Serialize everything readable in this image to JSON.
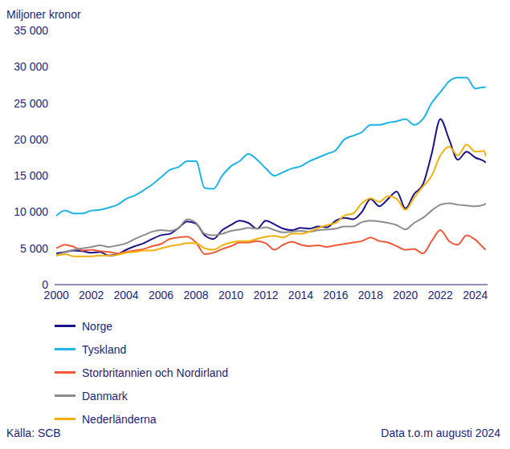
{
  "chart_data": {
    "type": "line",
    "y_label": "Miljoner kronor",
    "annotations": [
      "Källa: SCB",
      "Data t.o.m augusti 2024"
    ],
    "x": [
      2000,
      2000.5,
      2001,
      2001.5,
      2002,
      2002.5,
      2003,
      2003.5,
      2004,
      2004.5,
      2005,
      2005.5,
      2006,
      2006.5,
      2007,
      2007.5,
      2008,
      2008.5,
      2009,
      2009.5,
      2010,
      2010.5,
      2011,
      2011.5,
      2012,
      2012.5,
      2013,
      2013.5,
      2014,
      2014.5,
      2015,
      2015.5,
      2016,
      2016.5,
      2017,
      2017.5,
      2018,
      2018.5,
      2019,
      2019.5,
      2020,
      2020.5,
      2021,
      2021.5,
      2022,
      2022.5,
      2023,
      2023.5,
      2024,
      2024.5,
      2024.6
    ],
    "series": [
      {
        "name": "Norge",
        "color": "#1c1289",
        "values": [
          4300,
          4500,
          4700,
          4600,
          4400,
          4500,
          4000,
          4200,
          4800,
          5300,
          5700,
          6300,
          6800,
          7000,
          7800,
          8700,
          8400,
          6800,
          6300,
          7500,
          8200,
          8800,
          8500,
          7700,
          8800,
          8300,
          7700,
          7500,
          7800,
          7700,
          8000,
          7900,
          8800,
          9200,
          9000,
          10000,
          11800,
          10800,
          11800,
          12800,
          10500,
          12500,
          13800,
          18000,
          22800,
          20000,
          17200,
          18300,
          17500,
          17000,
          16800
        ]
      },
      {
        "name": "Tyskland",
        "color": "#1fb4e6",
        "values": [
          9500,
          10200,
          9800,
          9800,
          10200,
          10300,
          10600,
          11000,
          11800,
          12300,
          13000,
          13800,
          14800,
          15800,
          16200,
          17000,
          17000,
          13300,
          13200,
          15000,
          16300,
          17000,
          18000,
          17200,
          16000,
          15000,
          15500,
          16000,
          16300,
          17000,
          17500,
          18000,
          18500,
          20000,
          20500,
          21000,
          22000,
          22000,
          22300,
          22500,
          22800,
          22000,
          22800,
          25000,
          26500,
          28000,
          28500,
          28500,
          27000,
          27200,
          27200
        ]
      },
      {
        "name": "Storbritannien och Nordirland",
        "color": "#f0583a",
        "values": [
          5000,
          5500,
          5200,
          4700,
          4800,
          4600,
          4500,
          4300,
          4500,
          4700,
          4900,
          5300,
          5600,
          6300,
          6500,
          6600,
          5800,
          4200,
          4400,
          4900,
          5300,
          5800,
          5800,
          6000,
          5700,
          4800,
          5500,
          5900,
          5500,
          5300,
          5400,
          5200,
          5400,
          5600,
          5800,
          6000,
          6500,
          6000,
          5800,
          5300,
          4800,
          4900,
          4300,
          6000,
          7500,
          6000,
          5500,
          6800,
          6200,
          5000,
          4800
        ]
      },
      {
        "name": "Danmark",
        "color": "#8c8c8c",
        "values": [
          4000,
          4500,
          4800,
          5000,
          5200,
          5400,
          5200,
          5400,
          5700,
          6300,
          6800,
          7300,
          7500,
          7400,
          7800,
          9000,
          8500,
          7000,
          6800,
          7000,
          7400,
          7600,
          7800,
          7700,
          7900,
          7500,
          7200,
          7300,
          7400,
          7300,
          7500,
          7600,
          7700,
          8000,
          8000,
          8600,
          8800,
          8700,
          8500,
          8200,
          7600,
          8500,
          9200,
          10200,
          11000,
          11200,
          11000,
          10900,
          10800,
          11000,
          11200
        ]
      },
      {
        "name": "Nederländerna",
        "color": "#f2b00c",
        "values": [
          4000,
          4200,
          3900,
          3900,
          3900,
          4000,
          4000,
          4100,
          4400,
          4500,
          4700,
          4700,
          5000,
          5300,
          5500,
          5700,
          5700,
          5000,
          4800,
          5400,
          5800,
          6000,
          6000,
          6300,
          6600,
          6700,
          6500,
          7000,
          7000,
          7300,
          7800,
          8200,
          8500,
          9500,
          9800,
          11200,
          11900,
          11400,
          12200,
          11800,
          10300,
          12000,
          13500,
          15000,
          17800,
          19000,
          17800,
          19300,
          18300,
          18400,
          17700
        ]
      }
    ],
    "xlim": [
      1999.9,
      2024.7
    ],
    "xticks": [
      2000,
      2002,
      2004,
      2006,
      2008,
      2010,
      2012,
      2014,
      2016,
      2018,
      2020,
      2022,
      2024
    ],
    "ylim": [
      0,
      35000
    ],
    "yticks": [
      0,
      {
        "value": 5000,
        "label": "5 000"
      },
      {
        "value": 10000,
        "label": "10 000"
      },
      {
        "value": 15000,
        "label": "15 000"
      },
      {
        "value": 20000,
        "label": "20 000"
      },
      {
        "value": 25000,
        "label": "25 000"
      },
      {
        "value": 30000,
        "label": "30 000"
      },
      {
        "value": 35000,
        "label": "35 000"
      }
    ],
    "grid": false
  }
}
